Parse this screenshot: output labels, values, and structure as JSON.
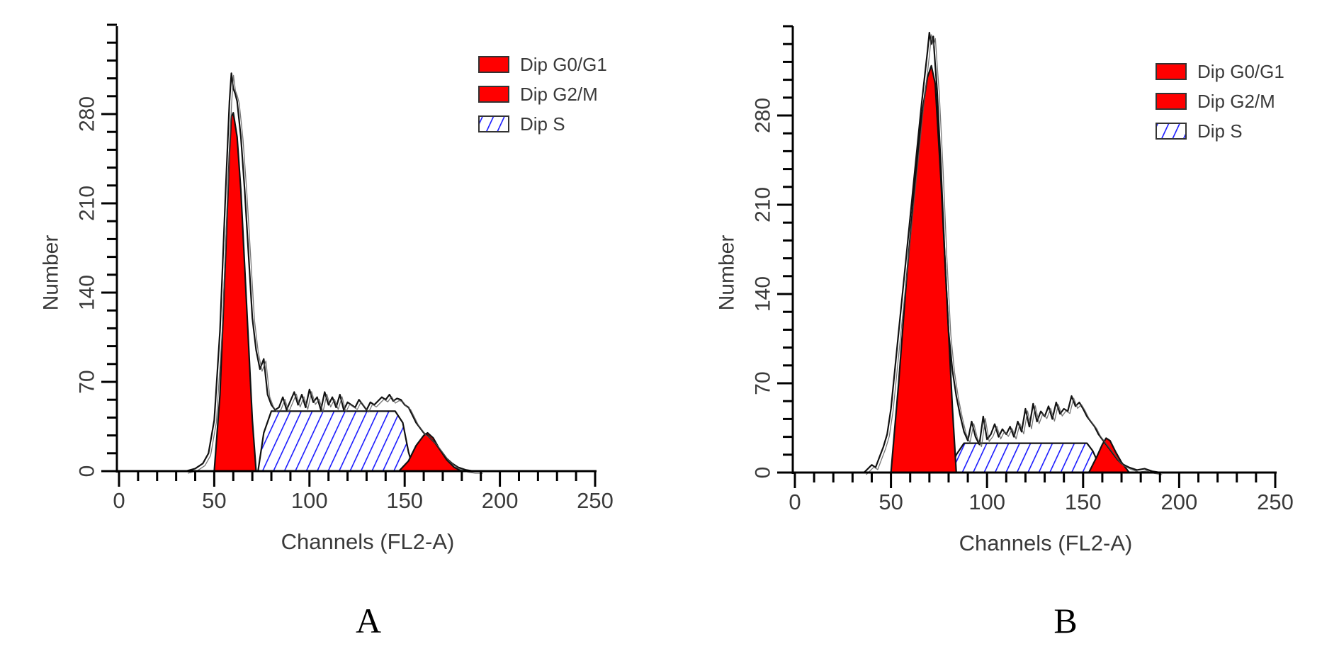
{
  "chart_data": [
    {
      "type": "area",
      "panel_label": "A",
      "title": "",
      "xlabel": "Channels (FL2-A)",
      "ylabel": "Number",
      "xlim": [
        0,
        250
      ],
      "ylim": [
        0,
        350
      ],
      "x_ticks": [
        0,
        50,
        100,
        150,
        200,
        250
      ],
      "x_minor_step": 10,
      "y_ticks": [
        0,
        70,
        140,
        210,
        280
      ],
      "y_minor_step": 14,
      "grid": false,
      "legend_position": "top-right",
      "legend": [
        {
          "label": "Dip G0/G1",
          "style": "solid",
          "color": "#ff0000"
        },
        {
          "label": "Dip G2/M",
          "style": "solid",
          "color": "#ff0000"
        },
        {
          "label": "Dip S",
          "style": "hatch",
          "color": "#1a1aff"
        }
      ],
      "series": [
        {
          "name": "Dip G0/G1",
          "kind": "fit-peak",
          "color": "#ff0000",
          "x": [
            50,
            53,
            56,
            58,
            59,
            60,
            62,
            64,
            66,
            68,
            70,
            72
          ],
          "y": [
            0,
            60,
            170,
            250,
            278,
            281,
            262,
            220,
            160,
            100,
            40,
            0
          ]
        },
        {
          "name": "Dip G2/M",
          "kind": "fit-peak",
          "color": "#ff0000",
          "x": [
            147,
            152,
            156,
            160,
            162,
            165,
            168,
            172,
            176,
            180
          ],
          "y": [
            0,
            8,
            20,
            28,
            30,
            26,
            18,
            9,
            3,
            0
          ]
        },
        {
          "name": "Dip S",
          "kind": "fit-plateau",
          "color": "#1a1aff",
          "x": [
            73,
            76,
            80,
            145,
            149,
            152,
            155
          ],
          "y": [
            0,
            30,
            47,
            47,
            38,
            15,
            0
          ]
        },
        {
          "name": "Histogram",
          "kind": "raw-trace",
          "color": "#000000",
          "x": [
            35,
            40,
            44,
            47,
            50,
            53,
            56,
            58,
            59,
            60,
            61,
            62,
            64,
            66,
            68,
            70,
            72,
            74,
            76,
            78,
            80,
            82,
            84,
            86,
            88,
            90,
            92,
            94,
            96,
            98,
            100,
            102,
            104,
            106,
            108,
            110,
            112,
            114,
            116,
            118,
            120,
            122,
            124,
            126,
            128,
            130,
            132,
            134,
            136,
            138,
            140,
            142,
            144,
            146,
            148,
            150,
            152,
            154,
            156,
            158,
            160,
            162,
            164,
            166,
            168,
            170,
            172,
            175,
            178,
            182,
            186,
            190
          ],
          "y": [
            0,
            2,
            6,
            14,
            40,
            110,
            220,
            290,
            312,
            300,
            296,
            290,
            262,
            220,
            170,
            120,
            95,
            80,
            88,
            60,
            52,
            48,
            50,
            58,
            48,
            55,
            62,
            52,
            60,
            50,
            64,
            54,
            58,
            48,
            62,
            52,
            58,
            50,
            60,
            48,
            54,
            52,
            50,
            56,
            52,
            48,
            54,
            52,
            55,
            58,
            56,
            60,
            55,
            57,
            56,
            52,
            50,
            44,
            38,
            34,
            30,
            28,
            25,
            22,
            18,
            14,
            10,
            6,
            3,
            1,
            0,
            0
          ]
        }
      ]
    },
    {
      "type": "area",
      "panel_label": "B",
      "title": "",
      "xlabel": "Channels (FL2-A)",
      "ylabel": "Number",
      "xlim": [
        0,
        250
      ],
      "ylim": [
        0,
        350
      ],
      "x_ticks": [
        0,
        50,
        100,
        150,
        200,
        250
      ],
      "x_minor_step": 10,
      "y_ticks": [
        0,
        70,
        140,
        210,
        280
      ],
      "y_minor_step": 14,
      "grid": false,
      "legend_position": "top-right",
      "legend": [
        {
          "label": "Dip G0/G1",
          "style": "solid",
          "color": "#ff0000"
        },
        {
          "label": "Dip G2/M",
          "style": "solid",
          "color": "#ff0000"
        },
        {
          "label": "Dip S",
          "style": "hatch",
          "color": "#1a1aff"
        }
      ],
      "series": [
        {
          "name": "Dip G0/G1",
          "kind": "fit-peak",
          "color": "#ff0000",
          "x": [
            50,
            54,
            58,
            62,
            66,
            69,
            71,
            73,
            76,
            79,
            82,
            84
          ],
          "y": [
            0,
            70,
            150,
            220,
            280,
            310,
            319,
            305,
            230,
            140,
            50,
            0
          ]
        },
        {
          "name": "Dip G2/M",
          "kind": "fit-peak",
          "color": "#ff0000",
          "x": [
            153,
            157,
            160,
            162,
            164,
            167,
            170,
            174
          ],
          "y": [
            0,
            12,
            22,
            27,
            25,
            16,
            8,
            0
          ]
        },
        {
          "name": "Dip S",
          "kind": "fit-plateau",
          "color": "#1a1aff",
          "x": [
            80,
            84,
            88,
            152,
            155,
            158,
            160
          ],
          "y": [
            0,
            14,
            23,
            23,
            17,
            7,
            0
          ]
        },
        {
          "name": "Histogram",
          "kind": "raw-trace",
          "color": "#000000",
          "x": [
            36,
            40,
            42,
            44,
            46,
            48,
            50,
            54,
            58,
            62,
            66,
            69,
            70,
            71,
            72,
            73,
            74,
            76,
            78,
            80,
            82,
            84,
            86,
            88,
            90,
            92,
            94,
            96,
            98,
            100,
            102,
            104,
            106,
            108,
            110,
            112,
            114,
            116,
            118,
            120,
            122,
            124,
            126,
            128,
            130,
            132,
            134,
            136,
            138,
            140,
            142,
            144,
            146,
            148,
            150,
            152,
            154,
            156,
            158,
            160,
            162,
            164,
            166,
            168,
            170,
            174,
            178,
            182,
            186,
            190
          ],
          "y": [
            0,
            6,
            4,
            12,
            20,
            30,
            50,
            110,
            170,
            230,
            290,
            330,
            345,
            336,
            342,
            320,
            300,
            240,
            170,
            110,
            80,
            60,
            45,
            32,
            25,
            40,
            28,
            22,
            44,
            26,
            30,
            38,
            28,
            34,
            30,
            36,
            28,
            40,
            32,
            50,
            36,
            54,
            40,
            48,
            44,
            52,
            42,
            55,
            46,
            50,
            48,
            60,
            52,
            55,
            50,
            44,
            40,
            36,
            30,
            26,
            22,
            18,
            14,
            10,
            7,
            4,
            2,
            3,
            1,
            0
          ]
        }
      ]
    }
  ],
  "panels": [
    {
      "letter": "A"
    },
    {
      "letter": "B"
    }
  ]
}
